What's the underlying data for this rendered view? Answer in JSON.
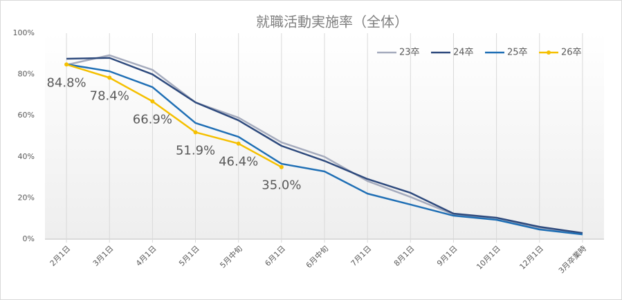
{
  "chart_data": {
    "type": "line",
    "title": "就職活動実施率（全体）",
    "categories": [
      "2月1日",
      "3月1日",
      "4月1日",
      "5月1日",
      "5月中旬",
      "6月1日",
      "6月中旬",
      "7月1日",
      "8月1日",
      "9月1日",
      "10月1日",
      "12月1日",
      "3月卒業時"
    ],
    "series": [
      {
        "name": "23卒",
        "color": "#a5abbd",
        "values": [
          84.6,
          89.3,
          82.2,
          66.4,
          59,
          47,
          40,
          28.2,
          20.5,
          12,
          9.4,
          5.4,
          2.7
        ]
      },
      {
        "name": "24卒",
        "color": "#2e4a7d",
        "values": [
          87.6,
          88,
          80,
          66.4,
          57.7,
          45.3,
          38,
          29.2,
          22.5,
          12.4,
          10.4,
          6,
          3
        ]
      },
      {
        "name": "25卒",
        "color": "#1f6fb5",
        "values": [
          84.9,
          81.5,
          73.8,
          56.4,
          49.7,
          36.6,
          32.9,
          22.1,
          16.8,
          11.4,
          9.4,
          4.7,
          2.3
        ]
      },
      {
        "name": "26卒",
        "color": "#f5c000",
        "markers": true,
        "values": [
          84.8,
          78.4,
          66.9,
          51.9,
          46.4,
          35.0,
          null,
          null,
          null,
          null,
          null,
          null,
          null
        ],
        "value_labels": [
          "84.8%",
          "78.4%",
          "66.9%",
          "51.9%",
          "46.4%",
          "35.0%",
          null,
          null,
          null,
          null,
          null,
          null,
          null
        ]
      }
    ],
    "ylim": [
      0,
      100
    ],
    "yticks": [
      {
        "value": 0,
        "label": "0%"
      },
      {
        "value": 20,
        "label": "20%"
      },
      {
        "value": 40,
        "label": "40%"
      },
      {
        "value": 60,
        "label": "60%"
      },
      {
        "value": 80,
        "label": "80%"
      },
      {
        "value": 100,
        "label": "100%"
      }
    ],
    "vertical_grid": true,
    "legend": "top-right"
  }
}
